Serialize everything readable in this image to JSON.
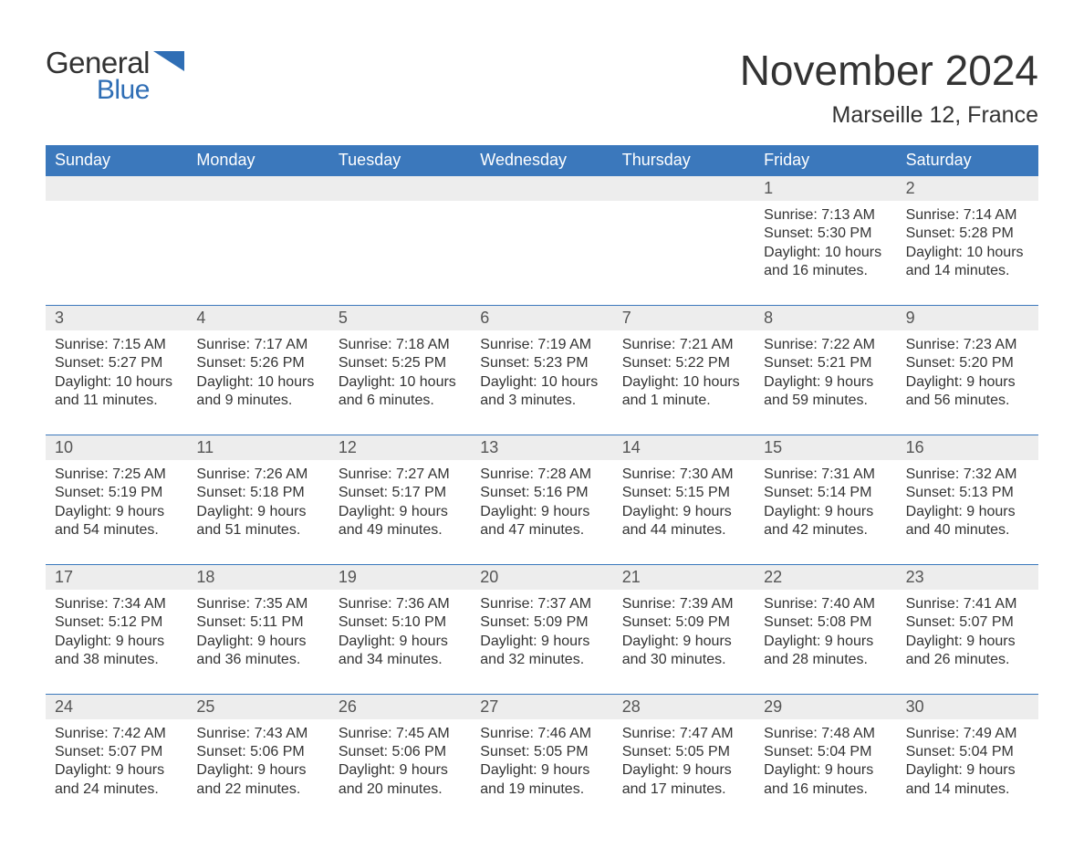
{
  "logo": {
    "line1": "General",
    "line2": "Blue"
  },
  "title": "November 2024",
  "subtitle": "Marseille 12, France",
  "colors": {
    "header_bg": "#3b78bc",
    "header_text": "#ffffff",
    "row_accent": "#3b78bc",
    "daynum_bg": "#ededed",
    "body_text": "#333333",
    "logo_blue": "#2f6eb5",
    "page_bg": "#ffffff"
  },
  "typography": {
    "title_fontsize": 46,
    "subtitle_fontsize": 25,
    "dow_fontsize": 18,
    "daynum_fontsize": 18,
    "body_fontsize": 16
  },
  "daysOfWeek": [
    "Sunday",
    "Monday",
    "Tuesday",
    "Wednesday",
    "Thursday",
    "Friday",
    "Saturday"
  ],
  "weeks": [
    [
      {
        "empty": true
      },
      {
        "empty": true
      },
      {
        "empty": true
      },
      {
        "empty": true
      },
      {
        "empty": true
      },
      {
        "num": "1",
        "sunrise": "7:13 AM",
        "sunset": "5:30 PM",
        "daylight1": "Daylight: 10 hours",
        "daylight2": "and 16 minutes."
      },
      {
        "num": "2",
        "sunrise": "7:14 AM",
        "sunset": "5:28 PM",
        "daylight1": "Daylight: 10 hours",
        "daylight2": "and 14 minutes."
      }
    ],
    [
      {
        "num": "3",
        "sunrise": "7:15 AM",
        "sunset": "5:27 PM",
        "daylight1": "Daylight: 10 hours",
        "daylight2": "and 11 minutes."
      },
      {
        "num": "4",
        "sunrise": "7:17 AM",
        "sunset": "5:26 PM",
        "daylight1": "Daylight: 10 hours",
        "daylight2": "and 9 minutes."
      },
      {
        "num": "5",
        "sunrise": "7:18 AM",
        "sunset": "5:25 PM",
        "daylight1": "Daylight: 10 hours",
        "daylight2": "and 6 minutes."
      },
      {
        "num": "6",
        "sunrise": "7:19 AM",
        "sunset": "5:23 PM",
        "daylight1": "Daylight: 10 hours",
        "daylight2": "and 3 minutes."
      },
      {
        "num": "7",
        "sunrise": "7:21 AM",
        "sunset": "5:22 PM",
        "daylight1": "Daylight: 10 hours",
        "daylight2": "and 1 minute."
      },
      {
        "num": "8",
        "sunrise": "7:22 AM",
        "sunset": "5:21 PM",
        "daylight1": "Daylight: 9 hours",
        "daylight2": "and 59 minutes."
      },
      {
        "num": "9",
        "sunrise": "7:23 AM",
        "sunset": "5:20 PM",
        "daylight1": "Daylight: 9 hours",
        "daylight2": "and 56 minutes."
      }
    ],
    [
      {
        "num": "10",
        "sunrise": "7:25 AM",
        "sunset": "5:19 PM",
        "daylight1": "Daylight: 9 hours",
        "daylight2": "and 54 minutes."
      },
      {
        "num": "11",
        "sunrise": "7:26 AM",
        "sunset": "5:18 PM",
        "daylight1": "Daylight: 9 hours",
        "daylight2": "and 51 minutes."
      },
      {
        "num": "12",
        "sunrise": "7:27 AM",
        "sunset": "5:17 PM",
        "daylight1": "Daylight: 9 hours",
        "daylight2": "and 49 minutes."
      },
      {
        "num": "13",
        "sunrise": "7:28 AM",
        "sunset": "5:16 PM",
        "daylight1": "Daylight: 9 hours",
        "daylight2": "and 47 minutes."
      },
      {
        "num": "14",
        "sunrise": "7:30 AM",
        "sunset": "5:15 PM",
        "daylight1": "Daylight: 9 hours",
        "daylight2": "and 44 minutes."
      },
      {
        "num": "15",
        "sunrise": "7:31 AM",
        "sunset": "5:14 PM",
        "daylight1": "Daylight: 9 hours",
        "daylight2": "and 42 minutes."
      },
      {
        "num": "16",
        "sunrise": "7:32 AM",
        "sunset": "5:13 PM",
        "daylight1": "Daylight: 9 hours",
        "daylight2": "and 40 minutes."
      }
    ],
    [
      {
        "num": "17",
        "sunrise": "7:34 AM",
        "sunset": "5:12 PM",
        "daylight1": "Daylight: 9 hours",
        "daylight2": "and 38 minutes."
      },
      {
        "num": "18",
        "sunrise": "7:35 AM",
        "sunset": "5:11 PM",
        "daylight1": "Daylight: 9 hours",
        "daylight2": "and 36 minutes."
      },
      {
        "num": "19",
        "sunrise": "7:36 AM",
        "sunset": "5:10 PM",
        "daylight1": "Daylight: 9 hours",
        "daylight2": "and 34 minutes."
      },
      {
        "num": "20",
        "sunrise": "7:37 AM",
        "sunset": "5:09 PM",
        "daylight1": "Daylight: 9 hours",
        "daylight2": "and 32 minutes."
      },
      {
        "num": "21",
        "sunrise": "7:39 AM",
        "sunset": "5:09 PM",
        "daylight1": "Daylight: 9 hours",
        "daylight2": "and 30 minutes."
      },
      {
        "num": "22",
        "sunrise": "7:40 AM",
        "sunset": "5:08 PM",
        "daylight1": "Daylight: 9 hours",
        "daylight2": "and 28 minutes."
      },
      {
        "num": "23",
        "sunrise": "7:41 AM",
        "sunset": "5:07 PM",
        "daylight1": "Daylight: 9 hours",
        "daylight2": "and 26 minutes."
      }
    ],
    [
      {
        "num": "24",
        "sunrise": "7:42 AM",
        "sunset": "5:07 PM",
        "daylight1": "Daylight: 9 hours",
        "daylight2": "and 24 minutes."
      },
      {
        "num": "25",
        "sunrise": "7:43 AM",
        "sunset": "5:06 PM",
        "daylight1": "Daylight: 9 hours",
        "daylight2": "and 22 minutes."
      },
      {
        "num": "26",
        "sunrise": "7:45 AM",
        "sunset": "5:06 PM",
        "daylight1": "Daylight: 9 hours",
        "daylight2": "and 20 minutes."
      },
      {
        "num": "27",
        "sunrise": "7:46 AM",
        "sunset": "5:05 PM",
        "daylight1": "Daylight: 9 hours",
        "daylight2": "and 19 minutes."
      },
      {
        "num": "28",
        "sunrise": "7:47 AM",
        "sunset": "5:05 PM",
        "daylight1": "Daylight: 9 hours",
        "daylight2": "and 17 minutes."
      },
      {
        "num": "29",
        "sunrise": "7:48 AM",
        "sunset": "5:04 PM",
        "daylight1": "Daylight: 9 hours",
        "daylight2": "and 16 minutes."
      },
      {
        "num": "30",
        "sunrise": "7:49 AM",
        "sunset": "5:04 PM",
        "daylight1": "Daylight: 9 hours",
        "daylight2": "and 14 minutes."
      }
    ]
  ],
  "labels": {
    "sunrise": "Sunrise: ",
    "sunset": "Sunset: "
  }
}
